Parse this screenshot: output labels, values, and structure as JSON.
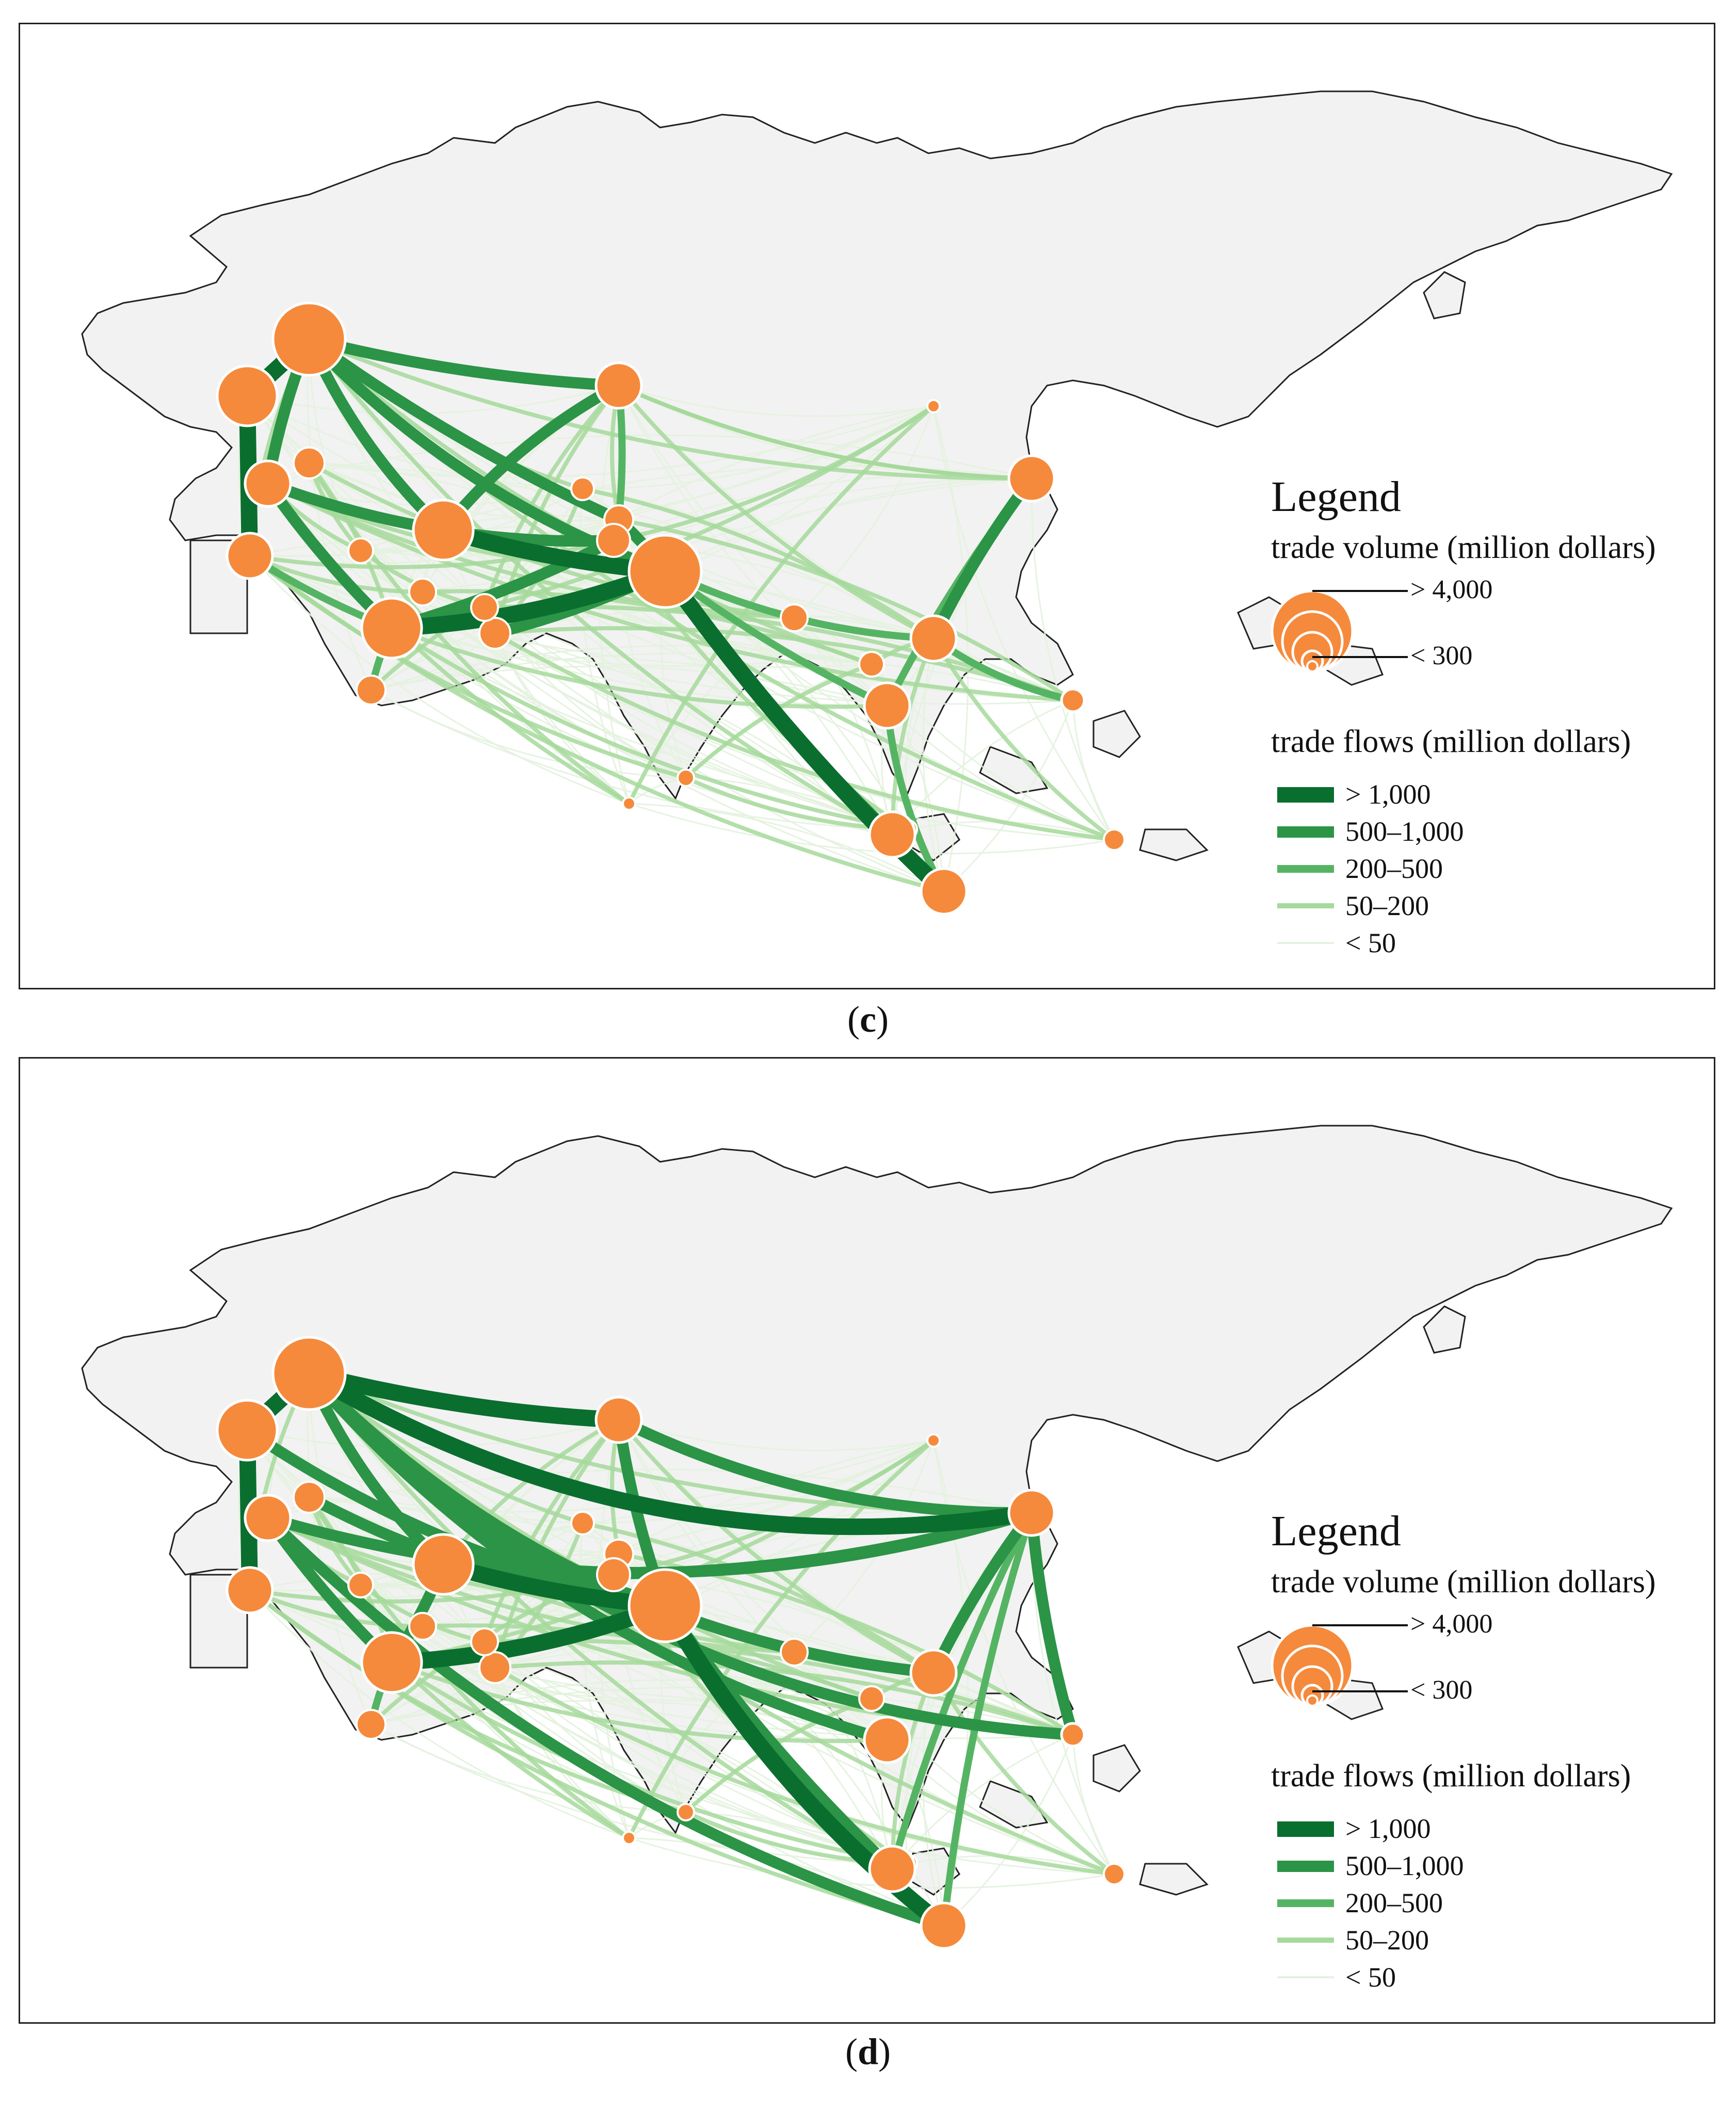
{
  "colors": {
    "land": "#f2f2f2",
    "coast": "#222222",
    "node": "#f58a3c",
    "node_outline": "#ffffff",
    "flow_gt_1000": "#0a6e2f",
    "flow_500_1000": "#2b9446",
    "flow_200_500": "#55b463",
    "flow_50_200": "#a6d99b",
    "flow_lt_50": "#e4f2df"
  },
  "panels": [
    {
      "id": "c",
      "caption_open": "(",
      "caption_letter": "c",
      "caption_close": ")",
      "legend": {
        "title": "Legend",
        "volume_title": "trade volume (million dollars)",
        "volume_max": "> 4,000",
        "volume_min": "< 300",
        "flows_title": "trade flows (million dollars)",
        "flow_classes": [
          "> 1,000",
          "500–1,000",
          "200–500",
          "50–200",
          "< 50"
        ]
      }
    },
    {
      "id": "d",
      "caption_open": "(",
      "caption_letter": "d",
      "caption_close": ")",
      "legend": {
        "title": "Legend",
        "volume_title": "trade volume (million dollars)",
        "volume_max": "> 4,000",
        "volume_min": "< 300",
        "flows_title": "trade flows (million dollars)",
        "flow_classes": [
          "> 1,000",
          "500–1,000",
          "200–500",
          "50–200",
          "< 50"
        ]
      }
    }
  ],
  "map_data": {
    "nodes": [
      {
        "id": "RU",
        "volume": "> 4,000"
      },
      {
        "id": "PL",
        "volume": "2,000–4,000"
      },
      {
        "id": "KZ",
        "volume": "1,000–2,000"
      },
      {
        "id": "CN",
        "volume": "1,000–2,000"
      },
      {
        "id": "TR",
        "volume": "1,000–2,000"
      },
      {
        "id": "IR",
        "volume": "2,000–4,000"
      },
      {
        "id": "SA",
        "volume": "2,000–4,000"
      },
      {
        "id": "IN",
        "volume": "> 4,000"
      },
      {
        "id": "EG",
        "volume": "1,000–2,000"
      },
      {
        "id": "TH",
        "volume": "1,000–2,000"
      },
      {
        "id": "VN",
        "volume": "1,000–2,000"
      },
      {
        "id": "ID",
        "volume": "1,000–2,000"
      },
      {
        "id": "PH",
        "volume": "< 300"
      },
      {
        "id": "MY",
        "volume": "1,000–2,000"
      }
    ]
  }
}
